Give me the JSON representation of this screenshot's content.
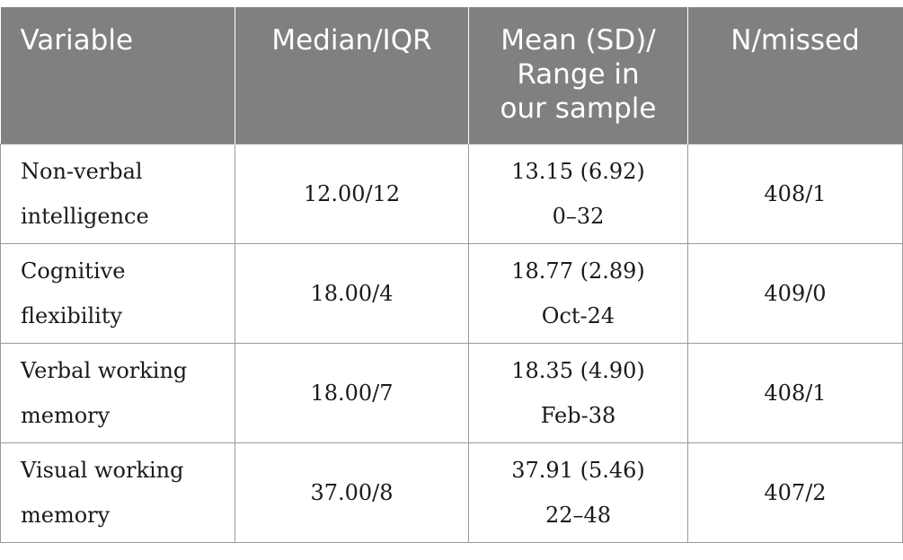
{
  "table": {
    "headers": [
      [
        "Variable"
      ],
      [
        "Median/IQR"
      ],
      [
        "Mean (SD)/",
        "Range in",
        "our sample"
      ],
      [
        "N/missed"
      ]
    ],
    "rows": [
      {
        "variable": [
          "Non-verbal",
          "intelligence"
        ],
        "median_iqr": "12.00/12",
        "mean_sd": "13.15 (6.92)",
        "range": "0–32",
        "n_missed": "408/1"
      },
      {
        "variable": [
          "Cognitive",
          "flexibility"
        ],
        "median_iqr": "18.00/4",
        "mean_sd": "18.77 (2.89)",
        "range": "Oct-24",
        "n_missed": "409/0"
      },
      {
        "variable": [
          "Verbal working",
          "memory"
        ],
        "median_iqr": "18.00/7",
        "mean_sd": "18.35 (4.90)",
        "range": "Feb-38",
        "n_missed": "408/1"
      },
      {
        "variable": [
          "Visual working",
          "memory"
        ],
        "median_iqr": "37.00/8",
        "mean_sd": "37.91 (5.46)",
        "range": "22–48",
        "n_missed": "407/2"
      }
    ]
  }
}
